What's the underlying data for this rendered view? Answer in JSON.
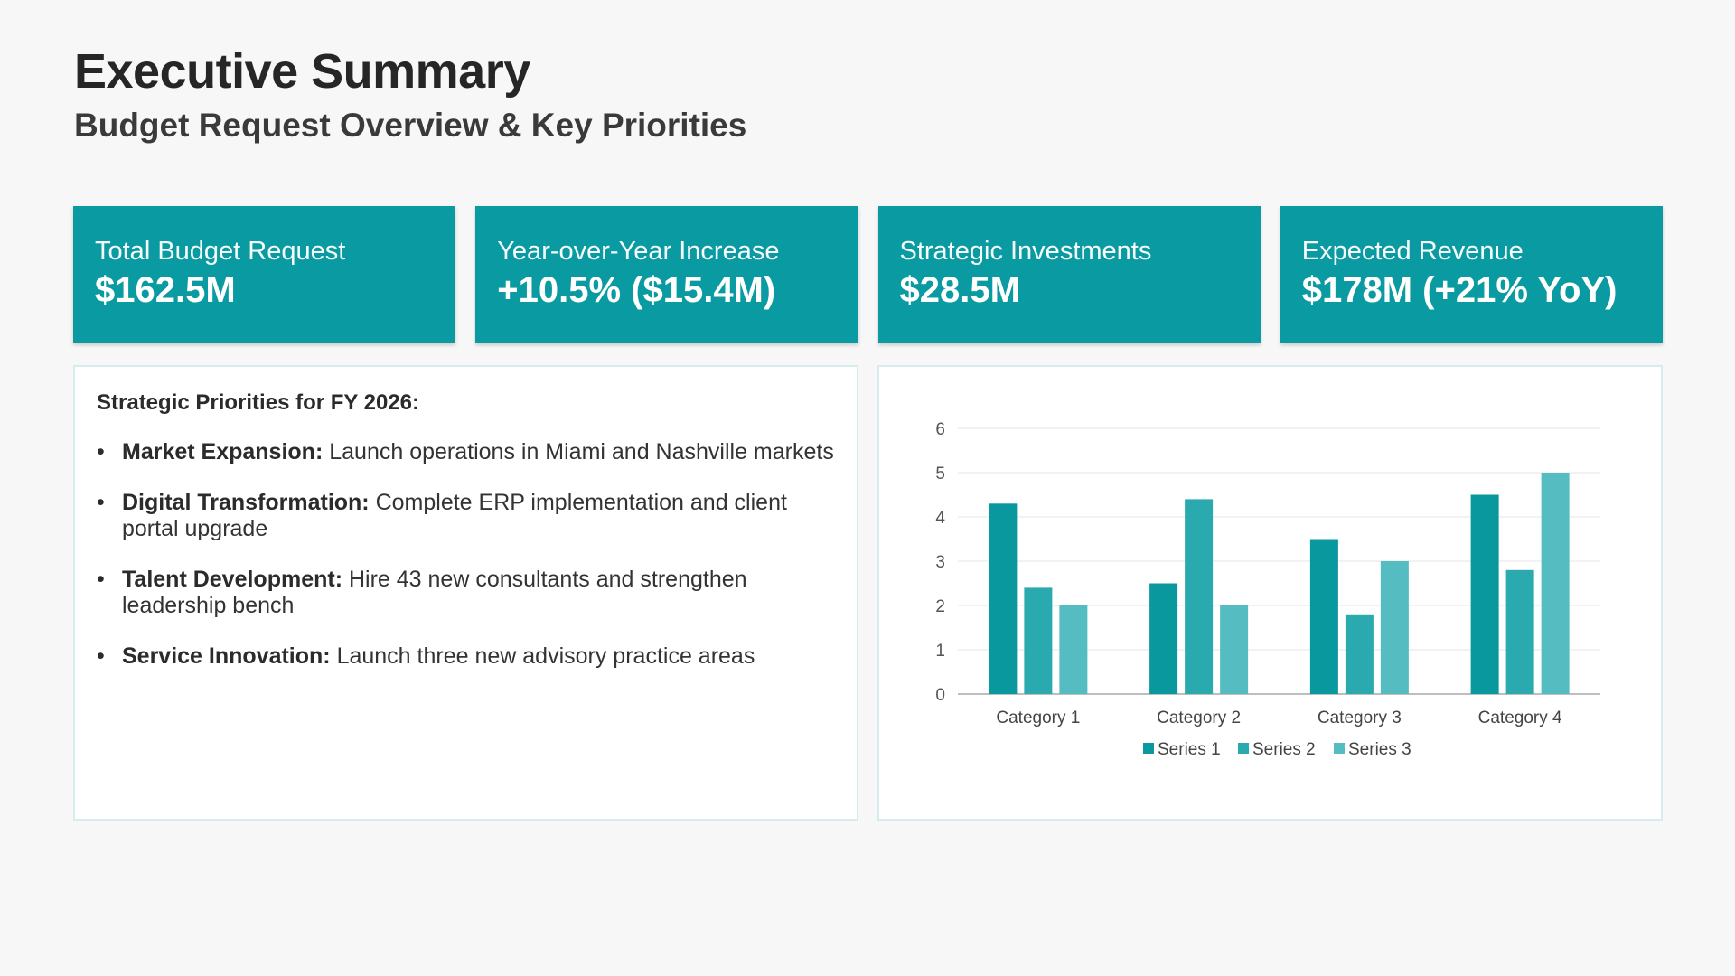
{
  "header": {
    "title": "Executive Summary",
    "subtitle": "Budget Request Overview & Key Priorities"
  },
  "kpis": [
    {
      "label": "Total Budget Request",
      "value": "$162.5M"
    },
    {
      "label": "Year-over-Year Increase",
      "value": "+10.5% ($15.4M)"
    },
    {
      "label": "Strategic Investments",
      "value": "$28.5M"
    },
    {
      "label": "Expected Revenue",
      "value": "$178M (+21% YoY)"
    }
  ],
  "priorities": {
    "heading": "Strategic Priorities for FY 2026:",
    "items": [
      {
        "term": "Market Expansion:",
        "text": " Launch operations in Miami and Nashville markets"
      },
      {
        "term": "Digital Transformation:",
        "text": " Complete ERP implementation and client portal upgrade"
      },
      {
        "term": "Talent Development:",
        "text": " Hire 43 new consultants and strengthen leadership bench"
      },
      {
        "term": "Service Innovation:",
        "text": " Launch three new advisory practice areas"
      }
    ]
  },
  "colors": {
    "accent": "#0a9ba2",
    "series1": "#08989e",
    "series2": "#2aa9af",
    "series3": "#55bcc1"
  },
  "chart_data": {
    "type": "bar",
    "categories": [
      "Category 1",
      "Category 2",
      "Category 3",
      "Category 4"
    ],
    "series": [
      {
        "name": "Series 1",
        "values": [
          4.3,
          2.5,
          3.5,
          4.5
        ]
      },
      {
        "name": "Series 2",
        "values": [
          2.4,
          4.4,
          1.8,
          2.8
        ]
      },
      {
        "name": "Series 3",
        "values": [
          2.0,
          2.0,
          3.0,
          5.0
        ]
      }
    ],
    "ylim": [
      0,
      6
    ],
    "yticks": [
      "0",
      "1",
      "2",
      "3",
      "4",
      "5",
      "6"
    ],
    "grid": true,
    "legend": "bottom",
    "title": "",
    "xlabel": "",
    "ylabel": ""
  }
}
